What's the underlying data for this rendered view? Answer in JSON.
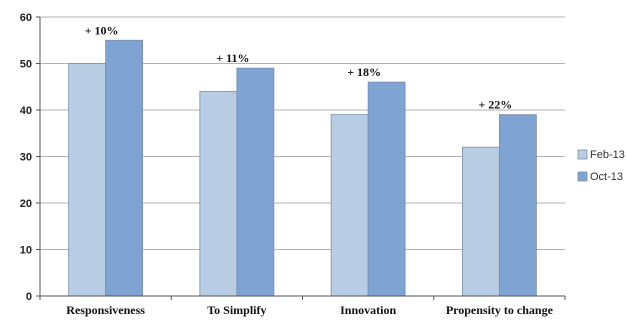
{
  "chart_data": {
    "type": "bar",
    "categories": [
      "Responsiveness",
      "To Simplify",
      "Innovation",
      "Propensity to change"
    ],
    "series": [
      {
        "name": "Feb-13",
        "values": [
          50,
          44,
          39,
          32
        ],
        "color": "#b8cce4"
      },
      {
        "name": "Oct-13",
        "values": [
          55,
          49,
          46,
          39
        ],
        "color": "#7fa3d2"
      }
    ],
    "annotations": [
      "+ 10%",
      "+ 11%",
      "+ 18%",
      "+ 22%"
    ],
    "ylim": [
      0,
      60
    ],
    "yticks": [
      0,
      10,
      20,
      30,
      40,
      50,
      60
    ],
    "grid": true,
    "legend_position": "right",
    "title": "",
    "xlabel": "",
    "ylabel": ""
  }
}
